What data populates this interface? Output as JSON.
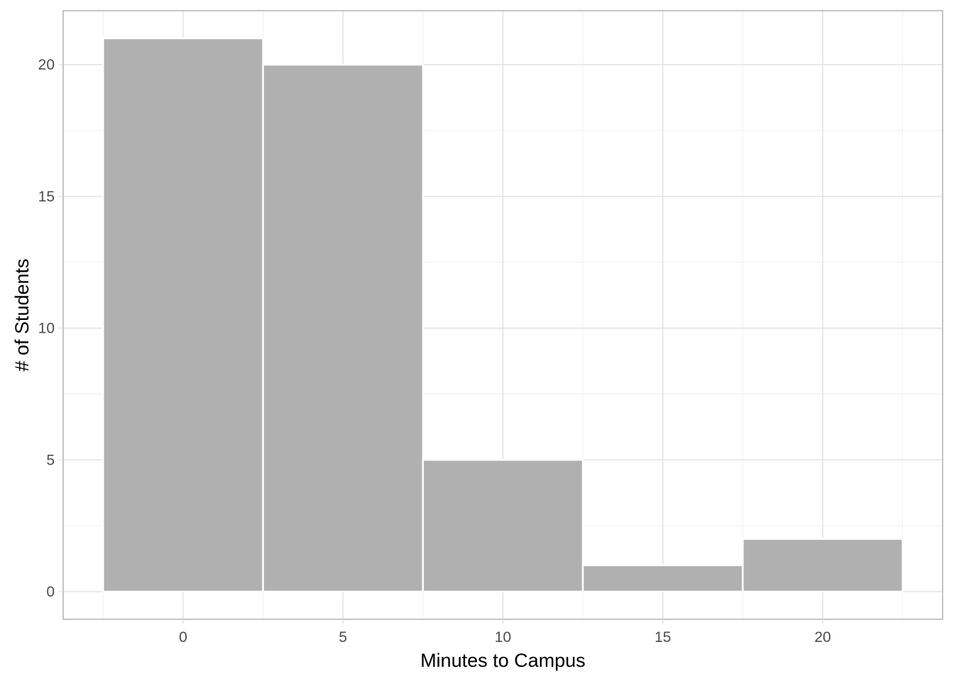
{
  "chart_data": {
    "type": "bar",
    "subtype": "histogram",
    "bin_width": 5,
    "x": [
      0,
      5,
      10,
      15,
      20
    ],
    "values": [
      21,
      20,
      5,
      1,
      2
    ],
    "xlabel": "Minutes to Campus",
    "ylabel": "# of Students",
    "xlim": [
      -3.75,
      23.75
    ],
    "ylim": [
      -1.05,
      22.05
    ],
    "x_ticks": [
      0,
      5,
      10,
      15,
      20
    ],
    "y_ticks": [
      0,
      5,
      10,
      15,
      20
    ],
    "grid": true,
    "legend": "none",
    "colors": {
      "bar_fill": "#b0b0b0",
      "bar_stroke": "#ffffff",
      "panel_border": "#a6a6a6",
      "grid_major": "#dedede",
      "grid_minor": "#efefef",
      "tick_text": "#4d4d4d",
      "title_text": "#000000"
    }
  }
}
